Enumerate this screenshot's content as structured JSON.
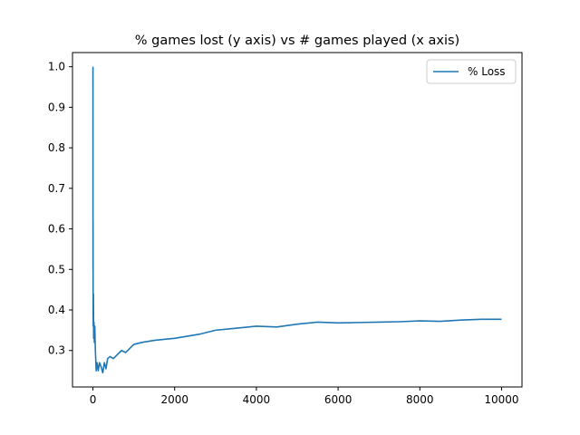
{
  "chart_data": {
    "type": "line",
    "title": "% games lost (y axis) vs # games played (x axis)",
    "xlabel": "",
    "ylabel": "",
    "xlim": [
      -500,
      10500
    ],
    "ylim": [
      0.21,
      1.035
    ],
    "x_ticks": [
      0,
      2000,
      4000,
      6000,
      8000,
      10000
    ],
    "x_tick_labels": [
      "0",
      "2000",
      "4000",
      "6000",
      "8000",
      "10000"
    ],
    "y_ticks": [
      0.3,
      0.4,
      0.5,
      0.6,
      0.7,
      0.8,
      0.9,
      1.0
    ],
    "y_tick_labels": [
      "0.3",
      "0.4",
      "0.5",
      "0.6",
      "0.7",
      "0.8",
      "0.9",
      "1.0"
    ],
    "grid": false,
    "legend_position": "top-right",
    "colors": {
      "line": "#1f77b4",
      "axes": "#000000",
      "background": "#ffffff"
    },
    "series": [
      {
        "name": "% Loss",
        "x": [
          1,
          2,
          3,
          5,
          8,
          12,
          18,
          25,
          35,
          45,
          60,
          80,
          100,
          130,
          160,
          200,
          240,
          280,
          320,
          360,
          420,
          500,
          600,
          700,
          800,
          900,
          1000,
          1200,
          1500,
          1800,
          2000,
          2300,
          2600,
          3000,
          3500,
          4000,
          4500,
          5000,
          5500,
          6000,
          6500,
          7000,
          7500,
          8000,
          8500,
          9000,
          9500,
          10000
        ],
        "values": [
          1.0,
          0.5,
          0.62,
          0.4,
          0.36,
          0.44,
          0.33,
          0.37,
          0.32,
          0.36,
          0.3,
          0.25,
          0.27,
          0.25,
          0.27,
          0.26,
          0.245,
          0.27,
          0.255,
          0.28,
          0.285,
          0.28,
          0.29,
          0.3,
          0.295,
          0.305,
          0.315,
          0.32,
          0.325,
          0.328,
          0.33,
          0.335,
          0.34,
          0.35,
          0.355,
          0.36,
          0.358,
          0.365,
          0.37,
          0.368,
          0.369,
          0.37,
          0.371,
          0.373,
          0.372,
          0.375,
          0.377,
          0.377
        ]
      }
    ]
  }
}
